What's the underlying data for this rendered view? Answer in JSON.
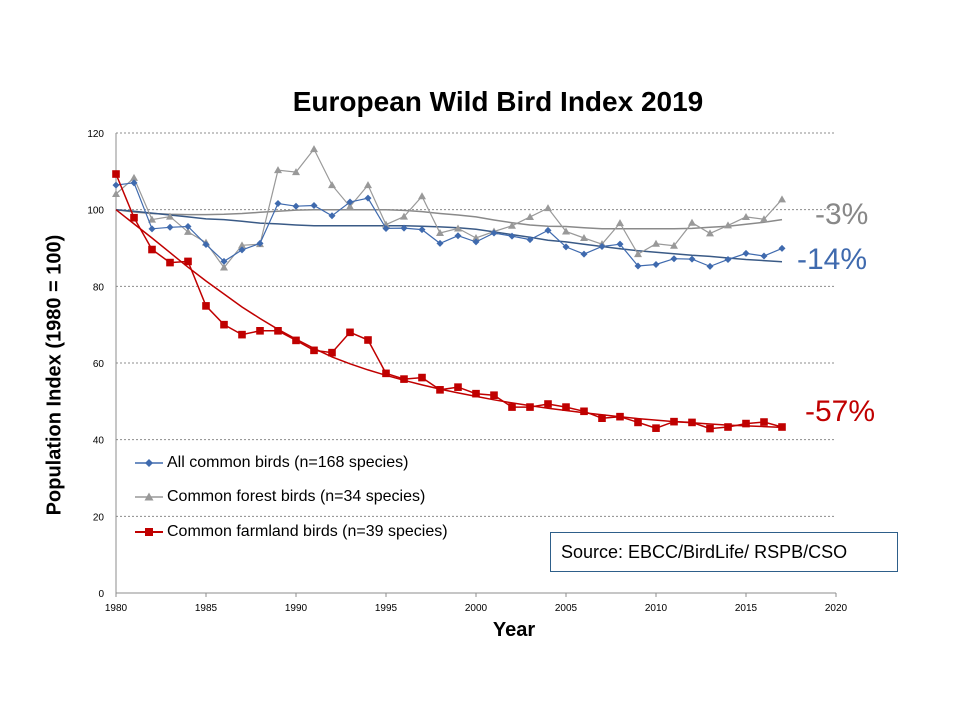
{
  "chart_data": {
    "type": "line",
    "title": "European Wild Bird Index 2019",
    "xlabel": "Year",
    "ylabel": "Population Index (1980 = 100)",
    "xlim": [
      1980,
      2020
    ],
    "ylim": [
      0,
      120
    ],
    "x_ticks": [
      "1980",
      "1985",
      "1990",
      "1995",
      "2000",
      "2005",
      "2010",
      "2015",
      "2020"
    ],
    "y_ticks": [
      "0",
      "20",
      "40",
      "60",
      "80",
      "100",
      "120"
    ],
    "grid": "horizontal dashed",
    "legend_position": "lower-left",
    "x": [
      1980,
      1981,
      1982,
      1983,
      1984,
      1985,
      1986,
      1987,
      1988,
      1989,
      1990,
      1991,
      1992,
      1993,
      1994,
      1995,
      1996,
      1997,
      1998,
      1999,
      2000,
      2001,
      2002,
      2003,
      2004,
      2005,
      2006,
      2007,
      2008,
      2009,
      2010,
      2011,
      2012,
      2013,
      2014,
      2015,
      2016,
      2017
    ],
    "series": [
      {
        "name": "All common birds (n=168 species)",
        "color": "#3F6AAE",
        "marker": "diamond",
        "values": [
          106.4,
          107.0,
          95.0,
          95.4,
          95.6,
          90.9,
          86.5,
          89.5,
          91.2,
          101.6,
          100.9,
          101.1,
          98.4,
          102.0,
          103.0,
          95.1,
          95.2,
          94.8,
          91.2,
          93.2,
          91.6,
          93.9,
          93.1,
          92.2,
          94.6,
          90.3,
          88.4,
          90.4,
          91.0,
          85.3,
          85.7,
          87.2,
          87.1,
          85.2,
          87.0,
          88.6,
          87.9,
          89.9
        ],
        "trend": [
          100,
          99.6,
          99.1,
          98.6,
          98.1,
          97.6,
          97.4,
          97.0,
          96.5,
          96.3,
          96.0,
          95.8,
          95.8,
          95.8,
          95.8,
          95.8,
          95.8,
          95.7,
          95.5,
          95.3,
          94.9,
          94.2,
          93.5,
          92.8,
          92.0,
          91.6,
          91.0,
          90.4,
          89.8,
          89.3,
          88.9,
          88.5,
          88.1,
          87.8,
          87.4,
          87.0,
          86.7,
          86.4
        ]
      },
      {
        "name": "Common forest birds (n=34 species)",
        "color": "#999999",
        "marker": "triangle",
        "values": [
          104.1,
          108.3,
          97.4,
          98.2,
          94.2,
          91.4,
          84.9,
          90.7,
          91.0,
          110.3,
          109.8,
          115.8,
          106.4,
          100.8,
          106.4,
          96.1,
          98.2,
          103.5,
          93.9,
          95.1,
          92.6,
          94.3,
          95.8,
          98.1,
          100.4,
          94.3,
          92.6,
          91.0,
          96.5,
          88.4,
          91.1,
          90.6,
          96.6,
          93.8,
          95.9,
          98.1,
          97.5,
          102.7
        ],
        "trend": [
          100,
          99.4,
          99.0,
          98.8,
          98.7,
          98.7,
          98.8,
          99.0,
          99.3,
          99.6,
          99.9,
          100.0,
          100.0,
          100.0,
          100.0,
          100.0,
          99.8,
          99.5,
          99.0,
          98.6,
          98.1,
          97.3,
          96.6,
          96.0,
          95.7,
          95.6,
          95.3,
          95.0,
          95.0,
          95.0,
          95.0,
          95.0,
          95.1,
          95.4,
          95.7,
          96.2,
          96.7,
          97.4
        ]
      },
      {
        "name": "Common farmland birds (n=39 species)",
        "color": "#C00000",
        "marker": "square",
        "values": [
          109.3,
          97.9,
          89.6,
          86.2,
          86.5,
          74.9,
          70.0,
          67.4,
          68.4,
          68.4,
          65.9,
          63.3,
          62.7,
          68.0,
          66.0,
          57.3,
          55.8,
          56.2,
          53.0,
          53.7,
          52.0,
          51.6,
          48.5,
          48.5,
          49.3,
          48.5,
          47.4,
          45.6,
          46.0,
          44.5,
          43.0,
          44.7,
          44.5,
          42.9,
          43.3,
          44.2,
          44.6,
          43.3
        ],
        "trend": [
          100,
          96.3,
          92.6,
          88.8,
          85.0,
          81.4,
          78.0,
          74.6,
          71.6,
          68.8,
          66.2,
          63.8,
          61.6,
          59.8,
          58.2,
          56.8,
          55.5,
          54.3,
          53.2,
          52.2,
          51.3,
          50.4,
          49.6,
          48.9,
          48.2,
          47.6,
          47.0,
          46.5,
          46.0,
          45.5,
          45.1,
          44.7,
          44.4,
          44.1,
          43.8,
          43.6,
          43.4,
          43.2
        ]
      }
    ],
    "annotations": [
      {
        "text": "-3%",
        "color": "#888888"
      },
      {
        "text": "-14%",
        "color": "#3F6AAE"
      },
      {
        "text": "-57%",
        "color": "#C00000"
      }
    ]
  },
  "source": "Source: EBCC/BirdLife/ RSPB/CSO"
}
